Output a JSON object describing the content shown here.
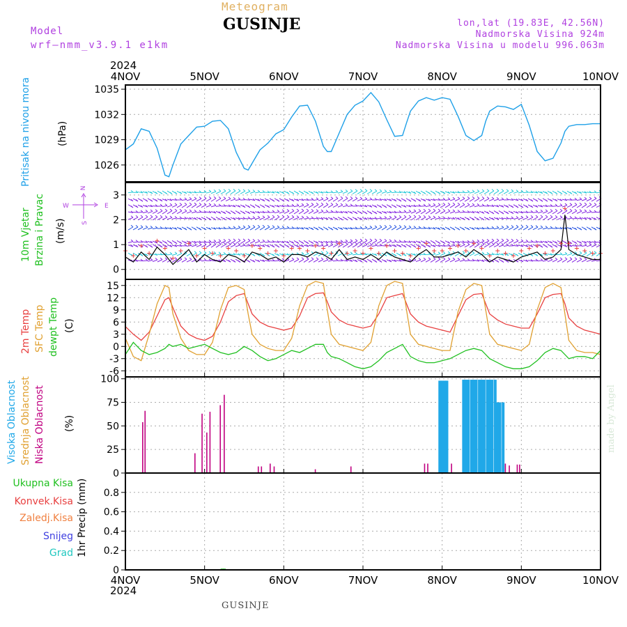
{
  "header": {
    "title": "Meteogram",
    "location": "GUSINJE",
    "model_label": "Model",
    "model_name": "wrf—nmm_v3.9.1  e1km",
    "coords": "lon,lat (19.83E, 42.56N)",
    "elevation": "Nadmorska Visina 924m",
    "model_elevation": "Nadmorska Visina u modelu 996.063m",
    "credit": "made by Angel",
    "footer": "GUSINJE"
  },
  "colors": {
    "pressure": "#1ea0e8",
    "temp2m": "#e84040",
    "sfc": "#e0a030",
    "dewpt": "#20c020",
    "high_cloud": "#20a8e8",
    "low_cloud": "#c00080",
    "wind_label": "#20c020",
    "arrow_purple": "#8020e0",
    "arrow_cyan": "#20c8d8",
    "arrow_blue": "#2050e0"
  },
  "chart_data": [
    {
      "type": "line",
      "panel": "pressure",
      "ylabel": "(hPa)",
      "side_label": "Pritisak na nivou mora",
      "yticks": [
        1026,
        1029,
        1032,
        1035
      ],
      "ylim": [
        1024,
        1035.5
      ],
      "x_days": [
        0.0,
        0.1,
        0.2,
        0.3,
        0.4,
        0.5,
        0.55,
        0.6,
        0.7,
        0.8,
        0.9,
        1.0,
        1.1,
        1.2,
        1.3,
        1.4,
        1.5,
        1.55,
        1.6,
        1.7,
        1.8,
        1.9,
        2.0,
        2.1,
        2.2,
        2.3,
        2.4,
        2.5,
        2.55,
        2.6,
        2.7,
        2.8,
        2.9,
        3.0,
        3.1,
        3.2,
        3.3,
        3.4,
        3.5,
        3.55,
        3.6,
        3.7,
        3.8,
        3.9,
        4.0,
        4.1,
        4.2,
        4.3,
        4.4,
        4.5,
        4.55,
        4.6,
        4.7,
        4.8,
        4.9,
        5.0,
        5.1,
        5.2,
        5.3,
        5.4,
        5.5,
        5.55,
        5.6,
        5.7,
        5.8,
        5.9,
        6.0
      ],
      "values": [
        1027.8,
        1028.5,
        1030.3,
        1030.0,
        1028.0,
        1024.8,
        1024.6,
        1026.0,
        1028.5,
        1029.5,
        1030.5,
        1030.6,
        1031.2,
        1031.3,
        1030.3,
        1027.5,
        1025.6,
        1025.4,
        1026.2,
        1027.8,
        1028.6,
        1029.7,
        1030.2,
        1031.7,
        1033.0,
        1033.1,
        1031.2,
        1028.2,
        1027.6,
        1027.6,
        1029.8,
        1032.0,
        1033.1,
        1033.6,
        1034.6,
        1033.5,
        1031.4,
        1029.4,
        1029.5,
        1031.0,
        1032.4,
        1033.6,
        1034.0,
        1033.7,
        1034.0,
        1033.8,
        1031.8,
        1029.5,
        1028.9,
        1029.5,
        1031.2,
        1032.4,
        1033.0,
        1032.9,
        1032.6,
        1033.2,
        1030.7,
        1027.6,
        1026.5,
        1026.8,
        1028.6,
        1030.0,
        1030.6,
        1030.8,
        1030.8,
        1030.9,
        1030.9
      ]
    },
    {
      "type": "line",
      "panel": "wind",
      "ylabel": "(m/s)",
      "side_label_1": "10m Vjetar",
      "side_label_2": "Brzina i Pravac",
      "compass": [
        "N",
        "W",
        "E",
        "S"
      ],
      "yticks": [
        0,
        1,
        2,
        3
      ],
      "ylim": [
        -0.4,
        3.5
      ],
      "arrow_rows": [
        3.1,
        2.8,
        2.55,
        2.3,
        2.05,
        1.65,
        1.1,
        0.95,
        0.6,
        0.35
      ],
      "x_days": [
        0.0,
        0.1,
        0.2,
        0.3,
        0.4,
        0.5,
        0.6,
        0.7,
        0.8,
        0.9,
        1.0,
        1.1,
        1.2,
        1.3,
        1.4,
        1.5,
        1.6,
        1.7,
        1.8,
        1.9,
        2.0,
        2.1,
        2.2,
        2.3,
        2.4,
        2.5,
        2.6,
        2.7,
        2.8,
        2.9,
        3.0,
        3.1,
        3.2,
        3.3,
        3.4,
        3.5,
        3.6,
        3.7,
        3.8,
        3.9,
        4.0,
        4.1,
        4.2,
        4.3,
        4.4,
        4.5,
        4.6,
        4.7,
        4.8,
        4.9,
        5.0,
        5.1,
        5.2,
        5.3,
        5.4,
        5.5,
        5.55,
        5.6,
        5.7,
        5.8,
        5.9,
        6.0
      ],
      "values": [
        0.5,
        0.3,
        0.7,
        0.4,
        0.9,
        0.6,
        0.2,
        0.5,
        0.8,
        0.3,
        0.6,
        0.4,
        0.3,
        0.6,
        0.5,
        0.3,
        0.7,
        0.6,
        0.4,
        0.5,
        0.3,
        0.6,
        0.6,
        0.5,
        0.7,
        0.6,
        0.4,
        0.8,
        0.4,
        0.5,
        0.4,
        0.6,
        0.4,
        0.7,
        0.5,
        0.4,
        0.3,
        0.6,
        0.8,
        0.5,
        0.5,
        0.6,
        0.7,
        0.5,
        0.8,
        0.6,
        0.3,
        0.5,
        0.4,
        0.3,
        0.5,
        0.6,
        0.7,
        0.4,
        0.5,
        0.8,
        2.2,
        0.8,
        0.6,
        0.5,
        0.4,
        0.4
      ]
    },
    {
      "type": "line",
      "panel": "temperature",
      "ylabel": "(C)",
      "side_labels": [
        "2m Temp",
        "SFC Temp",
        "dewpt Temp"
      ],
      "yticks": [
        -6,
        -3,
        0,
        3,
        6,
        9,
        12,
        15
      ],
      "ylim": [
        -7.5,
        16.5
      ],
      "x_days": [
        0.0,
        0.1,
        0.2,
        0.3,
        0.4,
        0.5,
        0.55,
        0.6,
        0.7,
        0.8,
        0.9,
        1.0,
        1.1,
        1.2,
        1.3,
        1.4,
        1.5,
        1.55,
        1.6,
        1.7,
        1.8,
        1.9,
        2.0,
        2.1,
        2.2,
        2.3,
        2.4,
        2.5,
        2.55,
        2.6,
        2.7,
        2.8,
        2.9,
        3.0,
        3.1,
        3.2,
        3.3,
        3.4,
        3.5,
        3.55,
        3.6,
        3.7,
        3.8,
        3.9,
        4.0,
        4.1,
        4.2,
        4.3,
        4.4,
        4.5,
        4.55,
        4.6,
        4.7,
        4.8,
        4.9,
        5.0,
        5.1,
        5.2,
        5.3,
        5.4,
        5.5,
        5.55,
        5.6,
        5.7,
        5.8,
        5.9,
        6.0
      ],
      "series": [
        {
          "name": "2m Temp",
          "values": [
            4.9,
            3.0,
            1.5,
            3.5,
            7.5,
            11.5,
            12.0,
            9.5,
            5.0,
            3.0,
            2.0,
            1.5,
            2.5,
            6.0,
            11.0,
            12.5,
            13.0,
            10.5,
            8.0,
            6.0,
            5.0,
            4.5,
            4.0,
            4.5,
            7.5,
            12.0,
            13.0,
            13.2,
            11.0,
            8.5,
            6.5,
            5.5,
            5.0,
            4.5,
            5.0,
            8.0,
            12.0,
            12.5,
            13.0,
            10.5,
            8.0,
            6.0,
            5.0,
            4.5,
            4.0,
            3.5,
            7.5,
            11.5,
            12.8,
            13.0,
            10.5,
            8.0,
            6.5,
            5.5,
            5.0,
            4.5,
            4.5,
            8.0,
            12.0,
            12.8,
            13.0,
            10.5,
            7.0,
            5.0,
            4.0,
            3.5,
            3.0
          ]
        },
        {
          "name": "SFC Temp",
          "values": [
            2.0,
            -2.5,
            -3.5,
            3.0,
            10.5,
            15.0,
            14.5,
            8.0,
            2.0,
            -1.0,
            -2.0,
            -2.0,
            1.0,
            9.0,
            14.5,
            15.0,
            14.0,
            8.0,
            3.0,
            0.5,
            -0.5,
            -1.0,
            -1.0,
            2.0,
            10.0,
            15.0,
            16.0,
            15.5,
            9.0,
            3.0,
            0.5,
            0.0,
            -0.5,
            -1.0,
            1.0,
            10.0,
            15.0,
            16.0,
            15.5,
            9.0,
            3.0,
            0.5,
            0.0,
            -0.5,
            -1.0,
            -1.0,
            8.5,
            14.0,
            15.5,
            15.0,
            9.0,
            3.0,
            0.5,
            0.0,
            -0.5,
            -1.0,
            0.5,
            9.0,
            14.5,
            15.5,
            14.5,
            8.0,
            1.5,
            -1.0,
            -1.5,
            -1.5,
            -2.0
          ]
        },
        {
          "name": "dewpt Temp",
          "values": [
            -2.0,
            1.0,
            -1.0,
            -2.0,
            -1.5,
            -0.5,
            0.5,
            0.0,
            0.5,
            -0.5,
            0.0,
            0.5,
            -0.5,
            -1.5,
            -2.0,
            -1.5,
            0.0,
            -0.5,
            -1.0,
            -2.5,
            -3.5,
            -3.0,
            -2.0,
            -1.0,
            -1.5,
            -0.5,
            0.5,
            0.5,
            -1.5,
            -2.5,
            -3.0,
            -4.0,
            -5.0,
            -5.5,
            -5.0,
            -3.5,
            -1.5,
            -0.5,
            0.5,
            -1.0,
            -2.5,
            -3.5,
            -4.0,
            -4.0,
            -3.5,
            -3.0,
            -2.0,
            -1.0,
            -0.5,
            -1.0,
            -2.0,
            -3.0,
            -4.0,
            -5.0,
            -5.5,
            -5.5,
            -5.0,
            -3.5,
            -1.5,
            -0.5,
            -1.0,
            -2.0,
            -3.0,
            -2.5,
            -2.5,
            -3.0,
            -1.0
          ]
        }
      ]
    },
    {
      "type": "bar",
      "panel": "cloud",
      "ylabel": "(%)",
      "side_labels": [
        "Visoka Oblacnost",
        "Srednja Oblacnost",
        "Niska Oblacnost"
      ],
      "yticks": [
        0,
        25,
        50,
        75,
        100
      ],
      "ylim": [
        0,
        102
      ],
      "series": [
        {
          "name": "Visoka Oblacnost",
          "x_days": [
            3.97,
            4.0,
            4.03,
            4.06,
            4.27,
            4.3,
            4.33,
            4.37,
            4.4,
            4.43,
            4.47,
            4.5,
            4.53,
            4.57,
            4.6,
            4.63,
            4.67,
            4.7,
            4.73,
            4.77
          ],
          "values": [
            98,
            98,
            98,
            98,
            99,
            99,
            99,
            99,
            99,
            99,
            99,
            99,
            99,
            99,
            99,
            99,
            99,
            75,
            75,
            75
          ]
        },
        {
          "name": "Niska Oblacnost",
          "x_days": [
            0.22,
            0.25,
            0.88,
            0.97,
            1.03,
            1.07,
            1.2,
            1.25,
            1.68,
            1.72,
            1.83,
            1.88,
            2.4,
            2.85,
            3.78,
            3.82,
            4.12,
            4.8,
            4.85,
            4.95,
            4.98
          ],
          "values": [
            54,
            66,
            21,
            63,
            43,
            65,
            72,
            83,
            7,
            7,
            10,
            7,
            4,
            7,
            10,
            10,
            10,
            10,
            8,
            9,
            9
          ]
        }
      ]
    },
    {
      "type": "bar",
      "panel": "precipitation",
      "ylabel": "1hr Precip (mm)",
      "side_labels": [
        "Ukupna Kisa",
        "Konvek.Kisa",
        "Zaledj.Kisa",
        "Snijeg",
        "Grad"
      ],
      "yticks": [
        "0",
        "0.2",
        "0.4",
        "0.6",
        "0.8"
      ],
      "ylim": [
        0,
        1.0
      ],
      "x_days": [
        1.22,
        1.25
      ],
      "values": [
        0.005,
        0.005
      ]
    }
  ],
  "x_axis": {
    "year": "2024",
    "labels": [
      "4NOV",
      "5NOV",
      "6NOV",
      "7NOV",
      "8NOV",
      "9NOV",
      "10NOV"
    ]
  }
}
